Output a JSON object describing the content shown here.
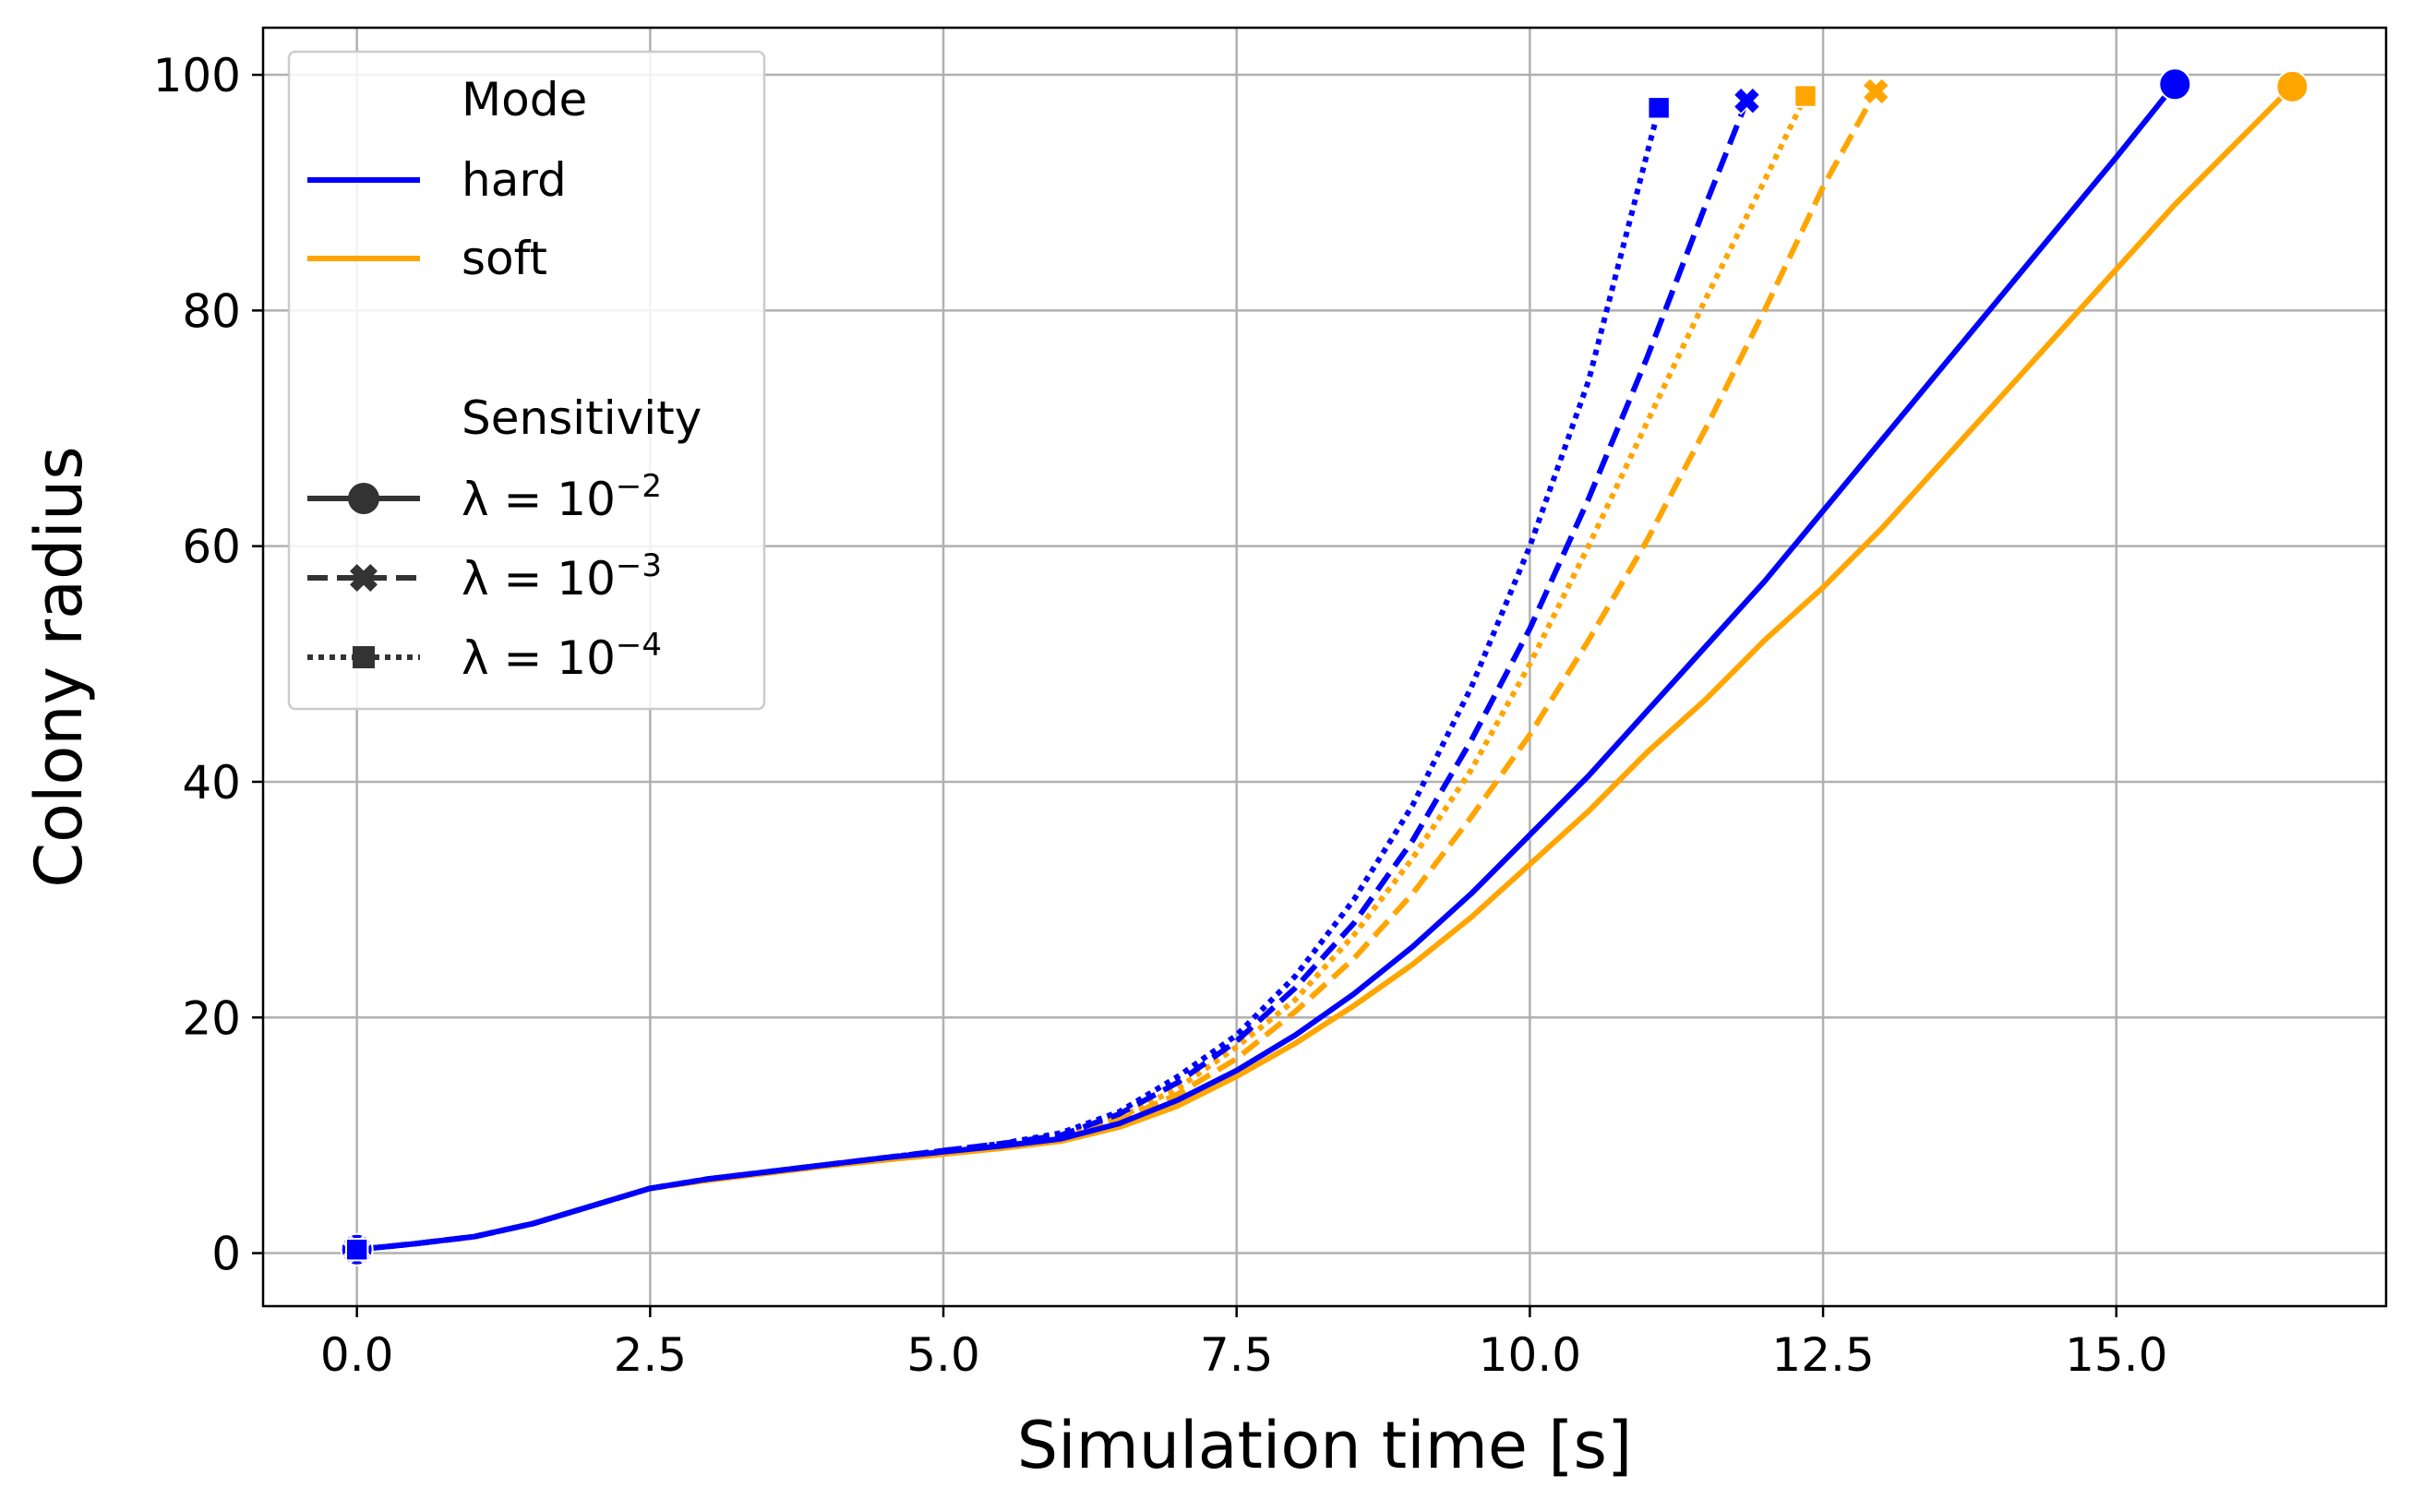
{
  "chart_data": {
    "type": "line",
    "title": "",
    "xlabel": "Simulation time [s]",
    "ylabel": "Colony radius",
    "xlim": [
      -0.8,
      17.3
    ],
    "ylim": [
      -4.5,
      104
    ],
    "xticks": [
      "0.0",
      "2.5",
      "5.0",
      "7.5",
      "10.0",
      "12.5",
      "15.0"
    ],
    "yticks": [
      "0",
      "20",
      "40",
      "60",
      "80",
      "100"
    ],
    "grid": true,
    "legend_placement": "upper-left",
    "legend": {
      "mode_title": "Mode",
      "modes": [
        {
          "label": "hard",
          "color": "#0000ff"
        },
        {
          "label": "soft",
          "color": "#ffa500"
        }
      ],
      "sensitivity_title": "Sensitivity",
      "sensitivities": [
        {
          "base": "λ = 10",
          "exp": "−2",
          "linestyle": "solid",
          "marker": "circle"
        },
        {
          "base": "λ = 10",
          "exp": "−3",
          "linestyle": "dashed",
          "marker": "x"
        },
        {
          "base": "λ = 10",
          "exp": "−4",
          "linestyle": "dotted",
          "marker": "square"
        }
      ]
    },
    "series": [
      {
        "mode": "hard",
        "sensitivity": "λ = 10^−2",
        "color": "#0000ff",
        "linestyle": "solid",
        "marker": "circle",
        "x": [
          0,
          0.5,
          1,
          1.5,
          2,
          2.5,
          3,
          3.5,
          4,
          4.5,
          5,
          5.5,
          6,
          6.5,
          7,
          7.5,
          8,
          8.5,
          9,
          9.5,
          10,
          10.5,
          11,
          11.5,
          12,
          12.5,
          13,
          13.5,
          14,
          14.5,
          15,
          15.5
        ],
        "y": [
          0.3,
          0.8,
          1.4,
          2.5,
          4.0,
          5.5,
          6.3,
          6.9,
          7.5,
          8.1,
          8.6,
          9.1,
          9.7,
          11.0,
          13.0,
          15.5,
          18.5,
          22.0,
          26.0,
          30.5,
          35.5,
          40.5,
          46.0,
          51.5,
          57.0,
          63.0,
          69.0,
          75.0,
          81.0,
          87.0,
          93.0,
          99.2
        ]
      },
      {
        "mode": "soft",
        "sensitivity": "λ = 10^−2",
        "color": "#ffa500",
        "linestyle": "solid",
        "marker": "circle",
        "x": [
          0,
          0.5,
          1,
          1.5,
          2,
          2.5,
          3,
          3.5,
          4,
          4.5,
          5,
          5.5,
          6,
          6.5,
          7,
          7.5,
          8,
          8.5,
          9,
          9.5,
          10,
          10.5,
          11,
          11.5,
          12,
          12.5,
          13,
          13.5,
          14,
          14.5,
          15,
          15.5,
          16,
          16.5
        ],
        "y": [
          0.3,
          0.8,
          1.4,
          2.5,
          4.0,
          5.5,
          6.2,
          6.8,
          7.4,
          7.9,
          8.4,
          8.9,
          9.5,
          10.7,
          12.5,
          15.0,
          17.8,
          21.0,
          24.5,
          28.5,
          33.0,
          37.5,
          42.5,
          47.0,
          52.0,
          56.5,
          61.5,
          67.0,
          72.5,
          78.0,
          83.5,
          89.0,
          94.0,
          99.0
        ]
      },
      {
        "mode": "hard",
        "sensitivity": "λ = 10^−3",
        "color": "#0000ff",
        "linestyle": "dashed",
        "marker": "x",
        "x": [
          0,
          0.5,
          1,
          1.5,
          2,
          2.5,
          3,
          3.5,
          4,
          4.5,
          5,
          5.5,
          6,
          6.5,
          7,
          7.5,
          8,
          8.5,
          9,
          9.5,
          10,
          10.5,
          11,
          11.5,
          11.85
        ],
        "y": [
          0.3,
          0.8,
          1.4,
          2.5,
          4.0,
          5.5,
          6.3,
          6.9,
          7.5,
          8.1,
          8.7,
          9.3,
          10.0,
          11.8,
          14.5,
          18.0,
          22.5,
          28.0,
          35.0,
          43.5,
          53.0,
          64.0,
          76.0,
          89.0,
          97.8
        ]
      },
      {
        "mode": "soft",
        "sensitivity": "λ = 10^−3",
        "color": "#ffa500",
        "linestyle": "dashed",
        "marker": "x",
        "x": [
          0,
          0.5,
          1,
          1.5,
          2,
          2.5,
          3,
          3.5,
          4,
          4.5,
          5,
          5.5,
          6,
          6.5,
          7,
          7.5,
          8,
          8.5,
          9,
          9.5,
          10,
          10.5,
          11,
          11.5,
          12,
          12.5,
          12.95
        ],
        "y": [
          0.3,
          0.8,
          1.4,
          2.5,
          4.0,
          5.5,
          6.2,
          6.8,
          7.4,
          8.0,
          8.6,
          9.1,
          9.8,
          11.3,
          13.5,
          16.5,
          20.5,
          25.0,
          30.5,
          37.0,
          44.0,
          52.0,
          60.5,
          70.0,
          80.0,
          90.5,
          98.6
        ]
      },
      {
        "mode": "hard",
        "sensitivity": "λ = 10^−4",
        "color": "#0000ff",
        "linestyle": "dotted",
        "marker": "square",
        "x": [
          0,
          0.5,
          1,
          1.5,
          2,
          2.5,
          3,
          3.5,
          4,
          4.5,
          5,
          5.5,
          6,
          6.5,
          7,
          7.5,
          8,
          8.5,
          9,
          9.5,
          10,
          10.5,
          11.1
        ],
        "y": [
          0.3,
          0.8,
          1.4,
          2.5,
          4.0,
          5.5,
          6.3,
          6.9,
          7.5,
          8.1,
          8.7,
          9.3,
          10.2,
          12.0,
          15.0,
          18.5,
          23.5,
          30.0,
          38.0,
          48.0,
          60.0,
          74.0,
          97.2
        ]
      },
      {
        "mode": "soft",
        "sensitivity": "λ = 10^−4",
        "color": "#ffa500",
        "linestyle": "dotted",
        "marker": "square",
        "x": [
          0,
          0.5,
          1,
          1.5,
          2,
          2.5,
          3,
          3.5,
          4,
          4.5,
          5,
          5.5,
          6,
          6.5,
          7,
          7.5,
          8,
          8.5,
          9,
          9.5,
          10,
          10.5,
          11,
          11.5,
          12,
          12.35
        ],
        "y": [
          0.3,
          0.8,
          1.4,
          2.5,
          4.0,
          5.5,
          6.2,
          6.8,
          7.4,
          8.0,
          8.6,
          9.2,
          9.9,
          11.5,
          14.0,
          17.5,
          21.5,
          27.0,
          33.5,
          41.0,
          50.0,
          60.0,
          70.5,
          81.0,
          91.0,
          98.2
        ]
      }
    ]
  }
}
